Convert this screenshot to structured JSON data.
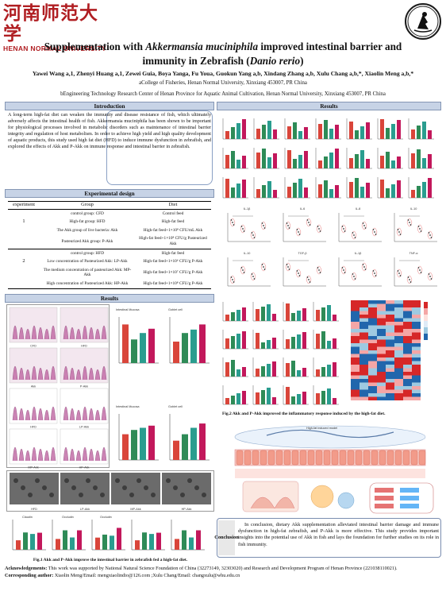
{
  "header": {
    "logo_cn": "河南师范大学",
    "logo_en": "HENAN NORMAL UNIVERSITY",
    "seal_text": "河南师范大学水产学院"
  },
  "title": {
    "line1_pre": "Supplementation with ",
    "line1_italic": "Akkermansia muciniphila",
    "line1_post": " improved intestinal barrier and",
    "line2_pre": "immunity in Zebrafish (",
    "line2_italic": "Danio rerio",
    "line2_post": ")"
  },
  "authors": "Yawei Wang a,1, Zhenyi Huang a,1, Zewei Guia, Boya Yanga, Fu Youa, Guokun Yang a,b, Xindang Zhang a,b, Xulu Chang a,b,*, Xiaolin Meng a,b,*",
  "affiliations": {
    "a": "aCollege of Fisheries, Henan Normal University, Xinxiang 453007, PR China",
    "b": "bEngineering Technology Research Center of Henan Province for Aquatic Animal Cultivation, Henan Normal University, Xinxiang 453007, PR China"
  },
  "sections": {
    "introduction": "Introduction",
    "experimental_design": "Experimental design",
    "results_left": "Results",
    "results_right": "Results"
  },
  "introduction_text": "A long-term high-fat diet can weaken the immunity and disease resistance of fish, which ultimately adversely affects the intestinal health of fish. Akkermansia muciniphila has been shown to be important for physiological processes involved in metabolic disorders such as maintenance of intestinal barrier integrity and regulation of host metabolism. In order to achieve high yield and high quality development of aquatic products, this study used high fat diet (HFD) to induce immune dysfunction in zebrafish, and explored the effects of Akk and P-Akk on immune response and intestinal barrier in zebrafish.",
  "table": {
    "headers": [
      "experiment",
      "Group",
      "Diet"
    ],
    "rows": [
      {
        "exp": "",
        "group": "control group: CFD",
        "diet": "Control feed"
      },
      {
        "exp": "1",
        "group": "High-fat group: HFD",
        "diet": "High-fat feed"
      },
      {
        "exp": "",
        "group": "The Akk group of live bacteria: Akk",
        "diet": "High-fat feed+1×10⁸ CFU/mL Akk"
      },
      {
        "exp": "",
        "group": "Pasteurized Akk group: P-Akk",
        "diet": "High-fat feed+1×10⁸ CFU/g Pasteurized Akk"
      },
      {
        "exp": "",
        "group": "control group: HFD",
        "diet": "High-fat feed"
      },
      {
        "exp": "2",
        "group": "Low concentration of Pasteurized Akk: LP-Akk",
        "diet": "High-fat feed+1×10⁶ CFU/g P-Akk"
      },
      {
        "exp": "",
        "group": "The medium concentration of pasteurized Akk: MP-Akk",
        "diet": "High-fat feed+1×10⁷ CFU/g P-Akk"
      },
      {
        "exp": "",
        "group": "High concentration of Pasteurized Akk: HP-Akk",
        "diet": "High-fat feed+1×10⁸ CFU/g P-Akk"
      }
    ]
  },
  "histology_labels": [
    "CFD",
    "HFD",
    "Akk",
    "P-Akk",
    "HFD",
    "LP-Akk",
    "MP-Akk",
    "HP-Akk"
  ],
  "em_labels": [
    "HFD",
    "LP-Akk",
    "MP-Akk",
    "HP-Akk"
  ],
  "bar_panel_titles": {
    "intestinal_mucosa": "Intestinal Mucosa",
    "goblet_cell": "Goblet cell"
  },
  "gene_titles": [
    "Claudin",
    "Occludin",
    "Occludin"
  ],
  "fig1_caption": "Fig.1 Akk and P-Akk improve the intestinal barrier in zebrafish fed a high-fat diet.",
  "fig2_caption": "Fig.2 Akk and P-Akk improved the inflammatory response induced by the high-fat diet.",
  "cytokine_titles": [
    "IL-1β",
    "IL-6",
    "IL-8",
    "IL-10",
    "IL-10",
    "TGF-β",
    "IL-1β",
    "TNF-α"
  ],
  "schematic_label": "High-fat induced model",
  "conclusion_label": "Conclusion",
  "conclusion_text": "In conclusion, dietary Akk supplementation alleviated intestinal barrier damage and immune dysfunction in high-fat zebrafish, and P-Akk is more effective. This study provides important insights into the potential use of Akk in fish and lays the foundation for further studies on its role in fish immunity.",
  "acknowledgements_label": "Acknowledgements:",
  "acknowledgements_text": "This work was supported by National Natural Science Foundation of China (32273149, 32303020) and Research and Development Program of Henan Province (221038110021).",
  "corresponding_label": "Corresponding author:",
  "corresponding_text": "Xiaolin Meng/Email: mengxiaolindio@126.com ;Xulu Chang/Email: changxulu@whu.edu.cn",
  "colors": {
    "bar_red": "#d9453a",
    "bar_green": "#2e8b57",
    "bar_teal": "#2a9d8f",
    "bar_magenta": "#c2185b",
    "header_blue": "#c7d3e6",
    "logo_red": "#b01e22"
  }
}
